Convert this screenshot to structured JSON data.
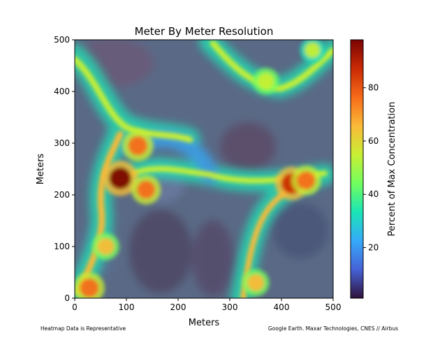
{
  "chart_data": {
    "type": "heatmap",
    "title": "Meter By Meter Resolution",
    "xlabel": "Meters",
    "ylabel": "Meters",
    "xlim": [
      0,
      500
    ],
    "ylim": [
      0,
      500
    ],
    "x_ticks": [
      "0",
      "100",
      "200",
      "300",
      "400",
      "500"
    ],
    "y_ticks": [
      "0",
      "100",
      "200",
      "300",
      "400",
      "500"
    ],
    "colorbar": {
      "label": "Percent of Max Concentration",
      "range": [
        1,
        98
      ],
      "ticks": [
        "20",
        "40",
        "60",
        "80"
      ],
      "tick_values": [
        20,
        40,
        60,
        80
      ],
      "colormap": [
        "#30123b",
        "#4662d7",
        "#36aaf9",
        "#1ae4b6",
        "#72fe5e",
        "#c8ef34",
        "#faba39",
        "#f66b19",
        "#ca2a04",
        "#7a0403"
      ]
    },
    "hotspots": [
      {
        "x": 88,
        "y": 232,
        "value": 98
      },
      {
        "x": 122,
        "y": 295,
        "value": 80
      },
      {
        "x": 138,
        "y": 210,
        "value": 72
      },
      {
        "x": 420,
        "y": 222,
        "value": 90
      },
      {
        "x": 448,
        "y": 228,
        "value": 72
      },
      {
        "x": 28,
        "y": 20,
        "value": 78
      },
      {
        "x": 60,
        "y": 100,
        "value": 62
      },
      {
        "x": 350,
        "y": 30,
        "value": 62
      },
      {
        "x": 370,
        "y": 420,
        "value": 58
      },
      {
        "x": 460,
        "y": 480,
        "value": 52
      }
    ],
    "grid": false,
    "background": "satellite imagery"
  },
  "footnotes": {
    "left": "Heatmap Data is Representative",
    "right": "Google Earth. Maxar Technologies, CNES // Airbus"
  }
}
